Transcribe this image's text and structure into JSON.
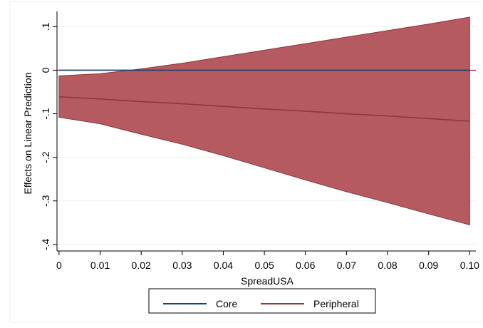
{
  "chart_data": {
    "type": "area",
    "title": "",
    "xlabel": "SpreadUSA",
    "ylabel": "Effects on Linear Prediction",
    "x_ticks": [
      0,
      0.01,
      0.02,
      0.03,
      0.04,
      0.05,
      0.06,
      0.07,
      0.08,
      0.09,
      0.1
    ],
    "x_tick_labels": [
      "0",
      "0.01",
      "0.02",
      "0.03",
      "0.04",
      "0.05",
      "0.06",
      "0.07",
      "0.08",
      "0.09",
      "0.10"
    ],
    "y_ticks": [
      0.1,
      0,
      -0.1,
      -0.2,
      -0.3,
      -0.4
    ],
    "y_tick_labels": [
      ".1",
      "0",
      "-.1",
      "-.2",
      "-.3",
      "-.4"
    ],
    "xlim": [
      -0.0005,
      0.1015
    ],
    "ylim": [
      -0.415,
      0.135
    ],
    "grid": true,
    "legend_position": "bottom",
    "series": [
      {
        "name": "Core",
        "color": "#1a476f",
        "x": [
          0,
          0.1
        ],
        "y": [
          0,
          0
        ]
      },
      {
        "name": "Peripheral",
        "color": "#90353b",
        "band_color": "#b65a61",
        "x": [
          0,
          0.01,
          0.02,
          0.03,
          0.04,
          0.05,
          0.06,
          0.07,
          0.08,
          0.09,
          0.1
        ],
        "y": [
          -0.061,
          -0.066,
          -0.072,
          -0.077,
          -0.083,
          -0.089,
          -0.094,
          -0.1,
          -0.105,
          -0.111,
          -0.117
        ],
        "ci_upper": [
          -0.013,
          -0.008,
          0.003,
          0.016,
          0.031,
          0.046,
          0.061,
          0.076,
          0.091,
          0.106,
          0.122
        ],
        "ci_lower": [
          -0.108,
          -0.123,
          -0.147,
          -0.17,
          -0.196,
          -0.224,
          -0.252,
          -0.279,
          -0.304,
          -0.33,
          -0.355
        ]
      }
    ],
    "legend": [
      {
        "label": "Core",
        "color": "#1a476f"
      },
      {
        "label": "Peripheral",
        "color": "#90353b"
      }
    ]
  }
}
